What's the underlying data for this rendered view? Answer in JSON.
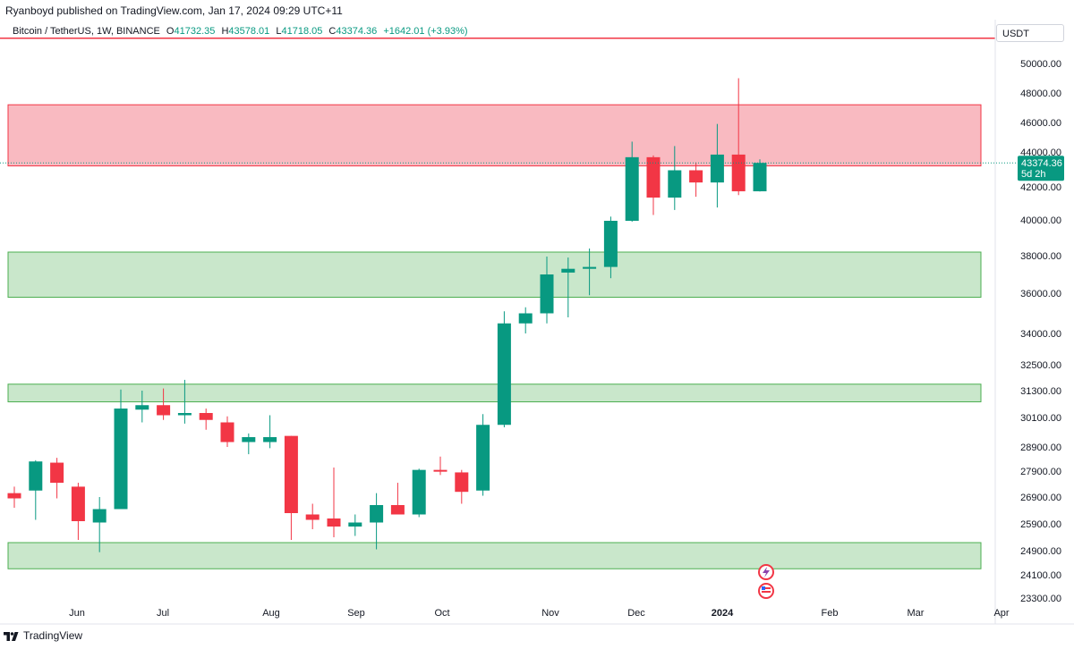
{
  "header": {
    "published": "Ryanboyd published on TradingView.com, Jan 17, 2024 09:29 UTC+11"
  },
  "legend": {
    "symbol": "Bitcoin / TetherUS, 1W, BINANCE",
    "open_label": "O",
    "open": "41732.35",
    "high_label": "H",
    "high": "43578.01",
    "low_label": "L",
    "low": "41718.05",
    "close_label": "C",
    "close": "43374.36",
    "change": "+1642.01 (+3.93%)"
  },
  "currency": "USDT",
  "last_price": {
    "value": "43374.36",
    "countdown": "5d 2h"
  },
  "footer": {
    "brand": "TradingView"
  },
  "colors": {
    "up": "#089981",
    "down": "#f23645",
    "red_zone": "#f7a9b1",
    "green_zone": "#b7dfb9",
    "axis_text": "#131722"
  },
  "chart_data": {
    "type": "candlestick",
    "interval": "1W",
    "y_tick_labels": [
      "50000.00",
      "48000.00",
      "46000.00",
      "44000.00",
      "42000.00",
      "40000.00",
      "38000.00",
      "36000.00",
      "34000.00",
      "32500.00",
      "31300.00",
      "30100.00",
      "28900.00",
      "27900.00",
      "26900.00",
      "25900.00",
      "24900.00",
      "24100.00",
      "23300.00"
    ],
    "x_tick_labels": [
      "Jun",
      "Jul",
      "Aug",
      "Sep",
      "Oct",
      "Nov",
      "Dec",
      "2024",
      "Feb",
      "Mar",
      "Apr"
    ],
    "candles": [
      {
        "o": 27050,
        "h": 27300,
        "l": 26500,
        "c": 26850
      },
      {
        "o": 27150,
        "h": 28350,
        "l": 26050,
        "c": 28300
      },
      {
        "o": 28250,
        "h": 28450,
        "l": 26850,
        "c": 27450
      },
      {
        "o": 27300,
        "h": 27450,
        "l": 25300,
        "c": 26000
      },
      {
        "o": 25950,
        "h": 26900,
        "l": 24850,
        "c": 26450
      },
      {
        "o": 26450,
        "h": 31350,
        "l": 26450,
        "c": 30500
      },
      {
        "o": 30450,
        "h": 31300,
        "l": 29900,
        "c": 30650
      },
      {
        "o": 30650,
        "h": 31400,
        "l": 30000,
        "c": 30200
      },
      {
        "o": 30200,
        "h": 31800,
        "l": 29850,
        "c": 30300
      },
      {
        "o": 30300,
        "h": 30500,
        "l": 29600,
        "c": 30000
      },
      {
        "o": 29900,
        "h": 30150,
        "l": 28900,
        "c": 29100
      },
      {
        "o": 29100,
        "h": 29450,
        "l": 28600,
        "c": 29300
      },
      {
        "o": 29100,
        "h": 30200,
        "l": 28850,
        "c": 29300
      },
      {
        "o": 29350,
        "h": 29350,
        "l": 25300,
        "c": 26300
      },
      {
        "o": 26250,
        "h": 26650,
        "l": 25700,
        "c": 26050
      },
      {
        "o": 26100,
        "h": 28050,
        "l": 25400,
        "c": 25800
      },
      {
        "o": 25800,
        "h": 26250,
        "l": 25450,
        "c": 25950
      },
      {
        "o": 25950,
        "h": 27050,
        "l": 24950,
        "c": 26600
      },
      {
        "o": 26600,
        "h": 27450,
        "l": 26400,
        "c": 26250
      },
      {
        "o": 26250,
        "h": 28000,
        "l": 26150,
        "c": 27950
      },
      {
        "o": 27950,
        "h": 28500,
        "l": 27750,
        "c": 27900
      },
      {
        "o": 27850,
        "h": 27950,
        "l": 26650,
        "c": 27100
      },
      {
        "o": 27150,
        "h": 30250,
        "l": 26950,
        "c": 29800
      },
      {
        "o": 29800,
        "h": 35100,
        "l": 29700,
        "c": 34500
      },
      {
        "o": 34500,
        "h": 35300,
        "l": 34000,
        "c": 35000
      },
      {
        "o": 35000,
        "h": 37950,
        "l": 34500,
        "c": 37000
      },
      {
        "o": 37100,
        "h": 37900,
        "l": 34800,
        "c": 37300
      },
      {
        "o": 37300,
        "h": 38400,
        "l": 35900,
        "c": 37400
      },
      {
        "o": 37400,
        "h": 40200,
        "l": 36800,
        "c": 39950
      },
      {
        "o": 39950,
        "h": 44700,
        "l": 39900,
        "c": 43700
      },
      {
        "o": 43700,
        "h": 43800,
        "l": 40300,
        "c": 41350
      },
      {
        "o": 41350,
        "h": 44400,
        "l": 40600,
        "c": 42950
      },
      {
        "o": 42950,
        "h": 43400,
        "l": 41400,
        "c": 42250
      },
      {
        "o": 42250,
        "h": 45900,
        "l": 40750,
        "c": 43850
      },
      {
        "o": 43850,
        "h": 49000,
        "l": 41500,
        "c": 41732
      },
      {
        "o": 41732,
        "h": 43578,
        "l": 41718,
        "c": 43374
      }
    ],
    "zones": [
      {
        "type": "resistance",
        "from": 43200,
        "to": 47200
      },
      {
        "type": "support",
        "from": 35800,
        "to": 38200
      },
      {
        "type": "support",
        "from": 30800,
        "to": 31600
      },
      {
        "type": "support",
        "from": 24300,
        "to": 25200
      }
    ]
  }
}
